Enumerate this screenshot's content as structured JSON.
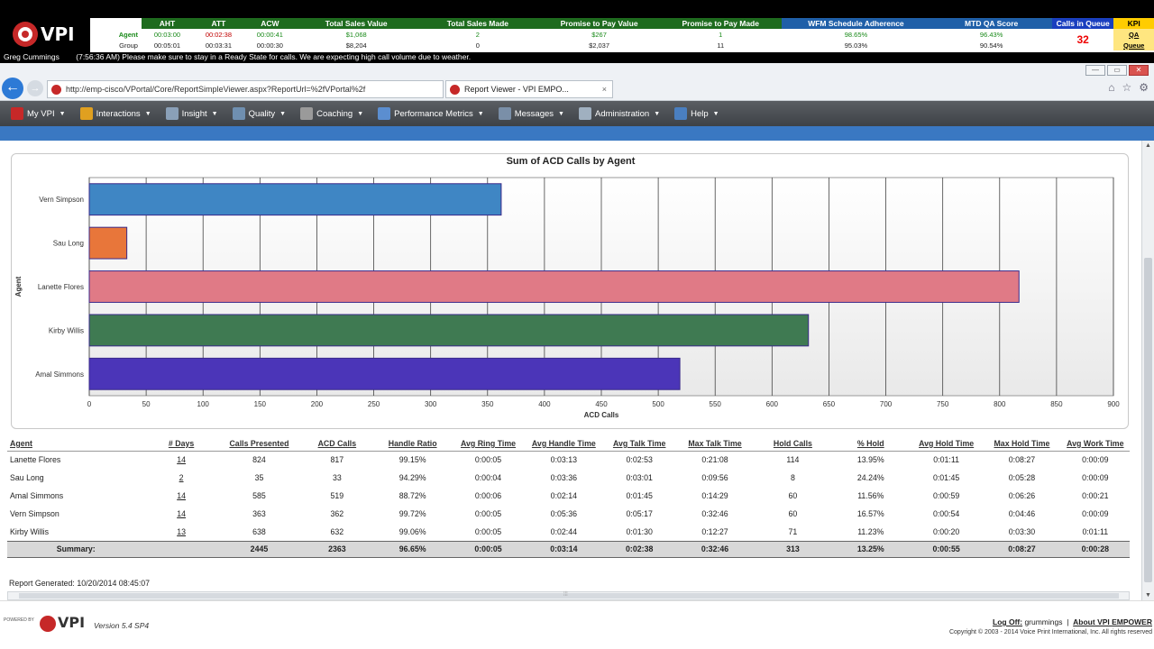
{
  "kpi_bar": {
    "logo_text": "VPI",
    "headers": [
      "AHT",
      "ATT",
      "ACW",
      "Total Sales Value",
      "Total Sales Made",
      "Promise to Pay Value",
      "Promise to Pay Made",
      "WFM Schedule Adherence",
      "MTD QA Score",
      "Calls in Queue",
      "KPI"
    ],
    "agent_row": {
      "label": "Agent",
      "values": [
        "00:03:00",
        "00:02:38",
        "00:00:41",
        "$1,068",
        "2",
        "$267",
        "1",
        "98.65%",
        "96.43%"
      ],
      "calls_in_queue": "32",
      "kpi_link": "QA"
    },
    "group_row": {
      "label": "Group",
      "values": [
        "00:05:01",
        "00:03:31",
        "00:00:30",
        "$8,204",
        "0",
        "$2,037",
        "11",
        "95.03%",
        "90.54%"
      ],
      "kpi_link": "Queue"
    },
    "ticker_user": "Greg Cummings",
    "ticker_message": "(7:56:36 AM) Please make sure to stay in a Ready State for calls. We are expecting high call volume due to weather."
  },
  "browser": {
    "url": "http://emp-cisco/VPortal/Core/ReportSimpleViewer.aspx?ReportUrl=%2fVPortal%2f",
    "tab_title": "Report Viewer - VPI EMPO...",
    "tab_close": "×"
  },
  "menu": [
    {
      "label": "My VPI",
      "color": "#c62828"
    },
    {
      "label": "Interactions",
      "color": "#e0a020"
    },
    {
      "label": "Insight",
      "color": "#8aa0b8"
    },
    {
      "label": "Quality",
      "color": "#6f8fb0"
    },
    {
      "label": "Coaching",
      "color": "#9a9a9a"
    },
    {
      "label": "Performance Metrics",
      "color": "#5b8ed0"
    },
    {
      "label": "Messages",
      "color": "#7a8fa8"
    },
    {
      "label": "Administration",
      "color": "#a0b0c0"
    },
    {
      "label": "Help",
      "color": "#4a7fc0"
    }
  ],
  "chart_data": {
    "type": "bar",
    "orientation": "horizontal",
    "title": "Sum of ACD Calls by Agent",
    "xlabel": "ACD Calls",
    "ylabel": "Agent",
    "xlim": [
      0,
      900
    ],
    "xticks": [
      0,
      50,
      100,
      150,
      200,
      250,
      300,
      350,
      400,
      450,
      500,
      550,
      600,
      650,
      700,
      750,
      800,
      850,
      900
    ],
    "categories": [
      "Vern Simpson",
      "Sau Long",
      "Lanette Flores",
      "Kirby Willis",
      "Amal Simmons"
    ],
    "values": [
      362,
      33,
      817,
      632,
      519
    ],
    "colors": [
      "#3f86c4",
      "#e8763a",
      "#e07a86",
      "#3f7a52",
      "#4b35b8"
    ],
    "grid": true,
    "legend": "none"
  },
  "table": {
    "columns": [
      "Agent",
      "# Days",
      "Calls Presented",
      "ACD Calls",
      "Handle Ratio",
      "Avg Ring Time",
      "Avg Handle Time",
      "Avg Talk Time",
      "Max Talk Time",
      "Hold Calls",
      "% Hold",
      "Avg Hold Time",
      "Max Hold Time",
      "Avg Work Time"
    ],
    "rows": [
      [
        "Lanette Flores",
        "14",
        "824",
        "817",
        "99.15%",
        "0:00:05",
        "0:03:13",
        "0:02:53",
        "0:21:08",
        "114",
        "13.95%",
        "0:01:11",
        "0:08:27",
        "0:00:09"
      ],
      [
        "Sau Long",
        "2",
        "35",
        "33",
        "94.29%",
        "0:00:04",
        "0:03:36",
        "0:03:01",
        "0:09:56",
        "8",
        "24.24%",
        "0:01:45",
        "0:05:28",
        "0:00:09"
      ],
      [
        "Amal Simmons",
        "14",
        "585",
        "519",
        "88.72%",
        "0:00:06",
        "0:02:14",
        "0:01:45",
        "0:14:29",
        "60",
        "11.56%",
        "0:00:59",
        "0:06:26",
        "0:00:21"
      ],
      [
        "Vern Simpson",
        "14",
        "363",
        "362",
        "99.72%",
        "0:00:05",
        "0:05:36",
        "0:05:17",
        "0:32:46",
        "60",
        "16.57%",
        "0:00:54",
        "0:04:46",
        "0:00:09"
      ],
      [
        "Kirby Willis",
        "13",
        "638",
        "632",
        "99.06%",
        "0:00:05",
        "0:02:44",
        "0:01:30",
        "0:12:27",
        "71",
        "11.23%",
        "0:00:20",
        "0:03:30",
        "0:01:11"
      ]
    ],
    "summary": [
      "Summary:",
      "",
      "2445",
      "2363",
      "96.65%",
      "0:00:05",
      "0:03:14",
      "0:02:38",
      "0:32:46",
      "313",
      "13.25%",
      "0:00:55",
      "0:08:27",
      "0:00:28"
    ]
  },
  "report_generated": {
    "label": "Report Generated:",
    "value": "10/20/2014 08:45:07"
  },
  "footer": {
    "powered_by": "POWERED BY",
    "logo_text": "VPI",
    "version": "Version 5.4 SP4",
    "logoff_label": "Log Off:",
    "username": "grummings",
    "about_link": "About VPI EMPOWER",
    "copyright": "Copyright © 2003 - 2014 Voice Print International, Inc. All rights reserved"
  }
}
